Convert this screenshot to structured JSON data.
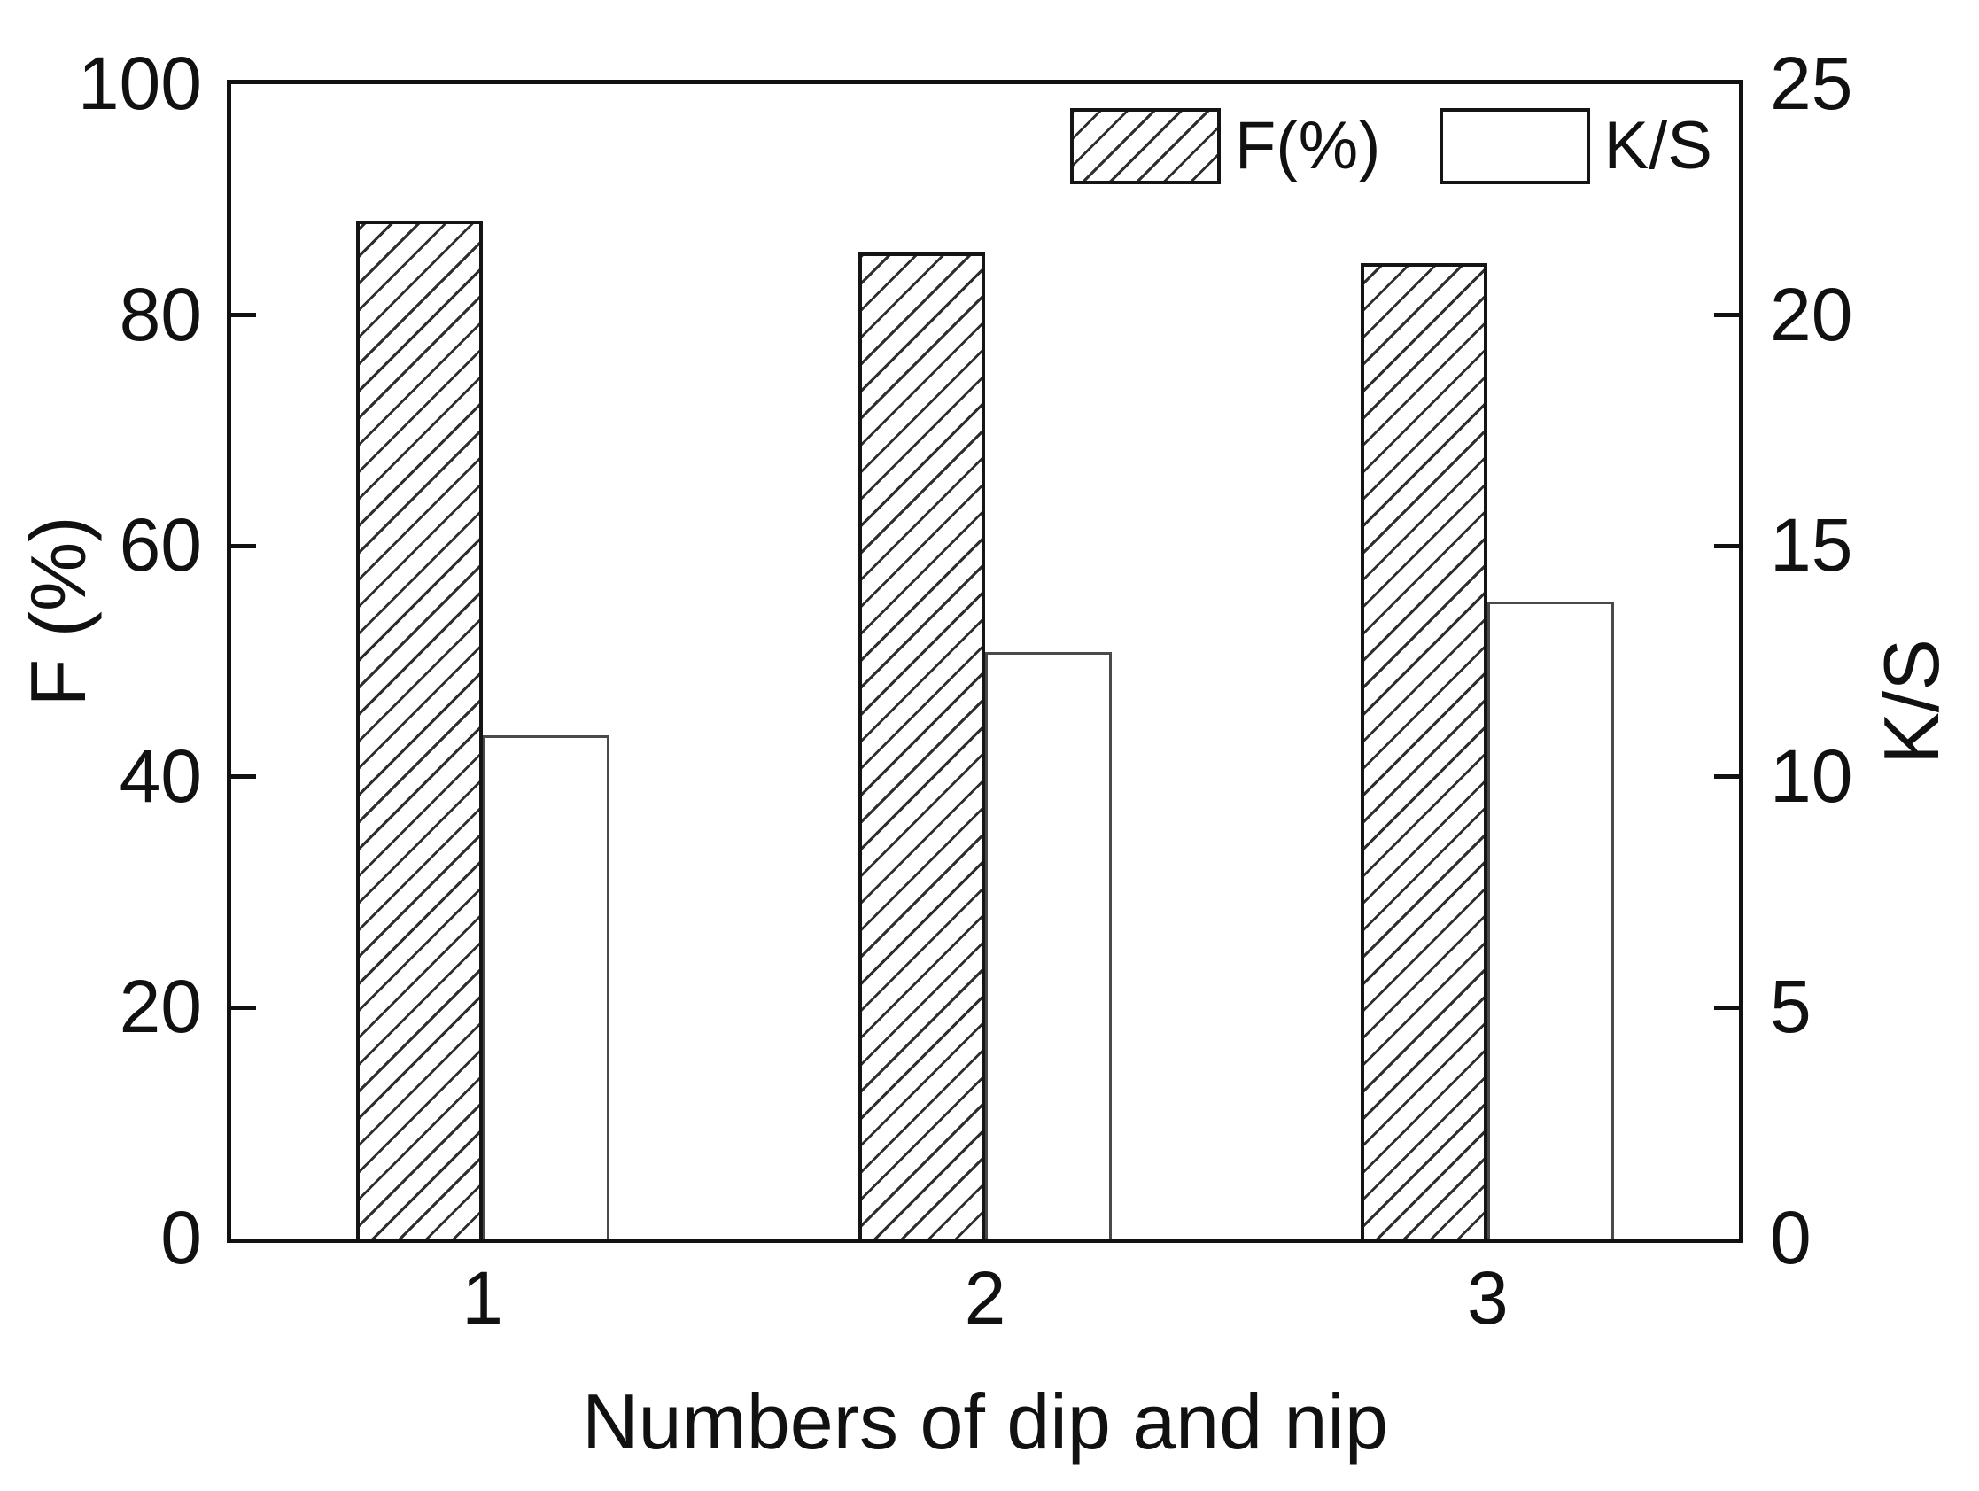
{
  "chart_data": {
    "type": "bar",
    "dual_axis": true,
    "title": "",
    "categories": [
      "1",
      "2",
      "3"
    ],
    "series": [
      {
        "name": "F(%)",
        "axis": "left",
        "style": "hatched",
        "values": [
          88.2,
          85.4,
          84.5
        ]
      },
      {
        "name": "K/S",
        "axis": "right",
        "style": "open",
        "values": [
          10.9,
          12.7,
          13.8
        ]
      }
    ],
    "xlabel": "Numbers of dip and nip",
    "ylabel_left": "F (%)",
    "ylabel_right": "K/S",
    "left_axis": {
      "min": 0,
      "max": 100,
      "ticks": [
        0,
        20,
        40,
        60,
        80,
        100
      ]
    },
    "right_axis": {
      "min": 0,
      "max": 25,
      "ticks": [
        0,
        5,
        10,
        15,
        20,
        25
      ]
    },
    "legend_position": "top-right-inside",
    "grid": false,
    "colors": {
      "frame": "#111111",
      "hatch_line": "#2e2e2e",
      "open_bar_border": "#4a4a4a",
      "background": "#ffffff",
      "text": "#111111"
    }
  }
}
